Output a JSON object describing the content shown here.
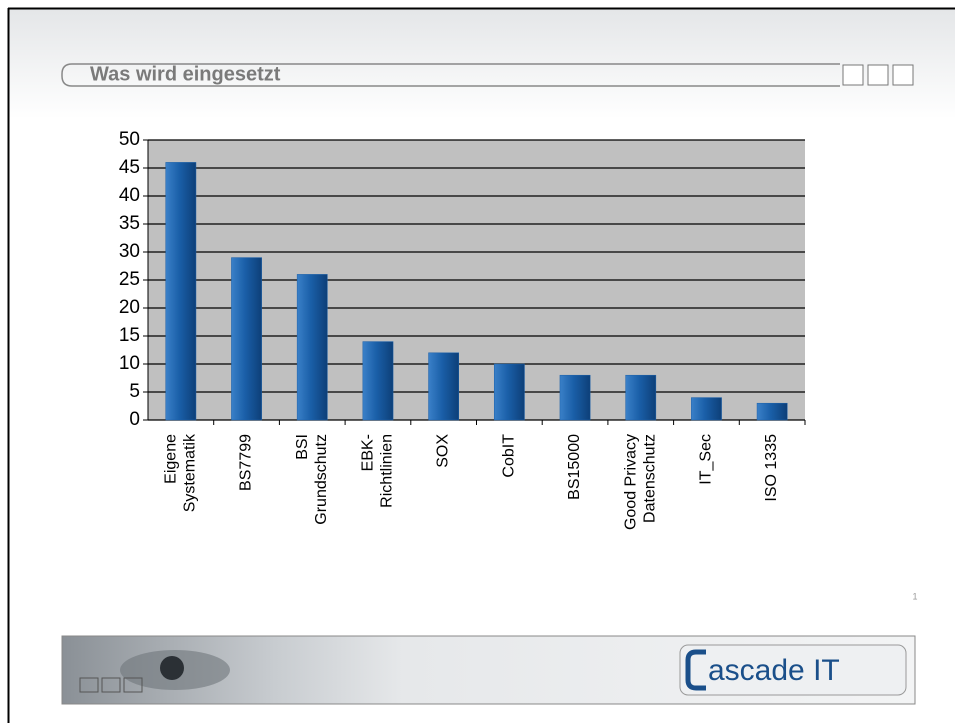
{
  "slide_title": "Was wird eingesetzt",
  "page_number": "1",
  "logo": "ascade IT",
  "chart_data": {
    "type": "bar",
    "categories": [
      "Eigene\nSystematik",
      "BS7799",
      "BSI\nGrundschutz",
      "EBK-\nRichtlinien",
      "SOX",
      "CobIT",
      "BS15000",
      "Good Privacy\nDatenschutz",
      "IT_Sec",
      "ISO 1335"
    ],
    "values": [
      46,
      29,
      26,
      14,
      12,
      10,
      8,
      8,
      4,
      3
    ],
    "color": "#1a5fa8",
    "ylim": [
      0,
      50
    ],
    "yticks": [
      0,
      5,
      10,
      15,
      20,
      25,
      30,
      35,
      40,
      45,
      50
    ],
    "grid": true
  }
}
